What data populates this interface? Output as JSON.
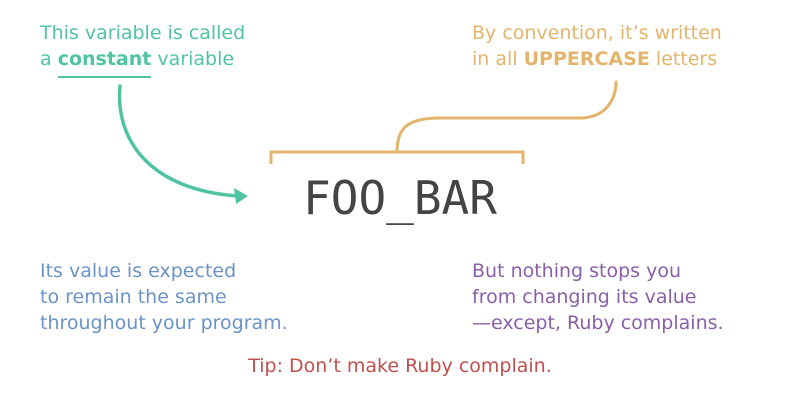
{
  "code_text": "FOO_BAR",
  "notes": {
    "constant": {
      "line1": "This variable is called",
      "line2_prefix": "a ",
      "line2_bold": "constant",
      "line2_suffix": " variable"
    },
    "uppercase": {
      "line1": "By convention, it’s written",
      "line2_prefix": "in all ",
      "line2_bold": "UPPERCASE",
      "line2_suffix": " letters"
    },
    "expected": {
      "line1": "Its value is expected",
      "line2": "to remain the same",
      "line3": "throughout your program."
    },
    "nothing": {
      "line1": "But nothing stops you",
      "line2": "from changing its value",
      "line3": "—except, Ruby complains."
    }
  },
  "tip": "Tip: Don’t make Ruby complain.",
  "colors": {
    "teal": "#50c4a2",
    "gold": "#e3b46b",
    "blue": "#6b93c6",
    "purple": "#8a5fa8",
    "red": "#c0504d",
    "code": "#444444"
  }
}
